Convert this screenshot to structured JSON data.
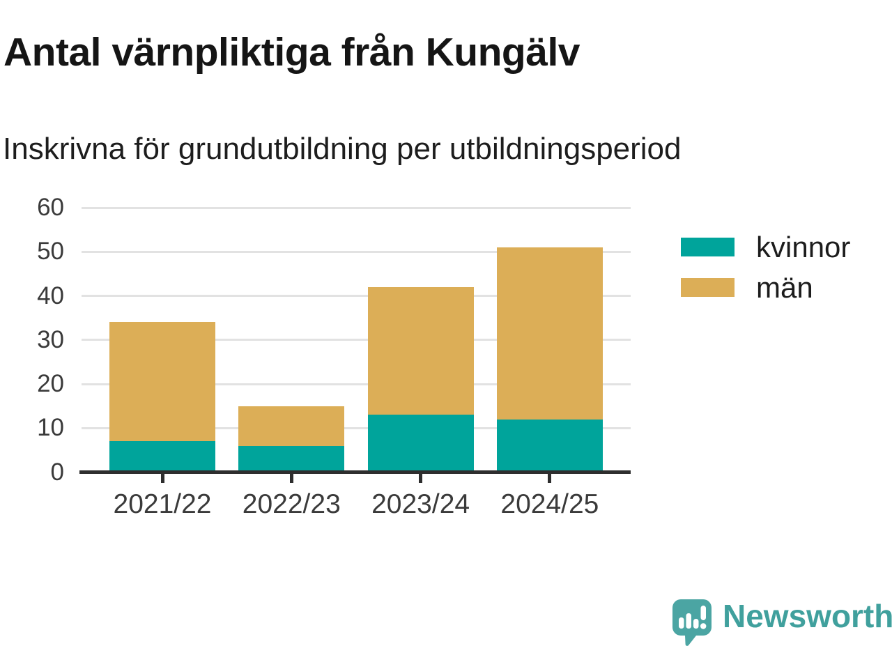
{
  "header": {
    "title": "Antal värnpliktiga från Kungälv",
    "subtitle": "Inskrivna för grundutbildning per utbildningsperiod"
  },
  "chart_data": {
    "type": "bar",
    "stacked": true,
    "title": "Antal värnpliktiga från Kungälv",
    "subtitle": "Inskrivna för grundutbildning per utbildningsperiod",
    "categories": [
      "2021/22",
      "2022/23",
      "2023/24",
      "2024/25"
    ],
    "series": [
      {
        "name": "kvinnor",
        "color": "#00a49b",
        "values": [
          7,
          6,
          13,
          12
        ]
      },
      {
        "name": "män",
        "color": "#dcae57",
        "values": [
          27,
          9,
          29,
          39
        ]
      }
    ],
    "totals": [
      34,
      15,
      42,
      51
    ],
    "xlabel": "",
    "ylabel": "",
    "ylim": [
      0,
      60
    ],
    "yticks": [
      0,
      10,
      20,
      30,
      40,
      50,
      60
    ],
    "grid": true,
    "legend_position": "right"
  },
  "branding": {
    "logo_text": "Newsworthy",
    "logo_icon": "newsworthy-speech-bubble-chart-icon",
    "logo_color": "#4ba5a3",
    "text_color": "#40a09d"
  },
  "colors": {
    "background": "#ffffff",
    "gridline": "#e2e2e2",
    "axis": "#2e2e2e",
    "tick_label": "#3a3a3a",
    "title_text": "#151515"
  }
}
